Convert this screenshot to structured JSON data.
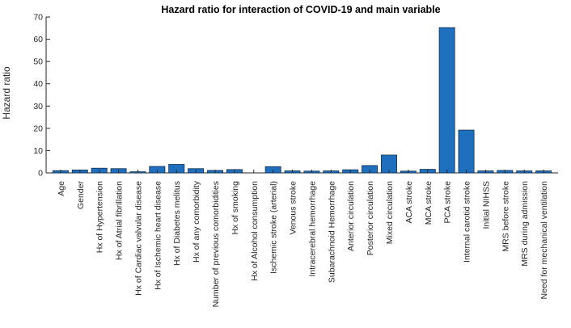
{
  "chart_data": {
    "type": "bar",
    "title": "Hazard ratio for interaction of COVID-19 and main variable",
    "xlabel": "",
    "ylabel": "Hazard ratio",
    "ylim": [
      0,
      70
    ],
    "yticks": [
      0,
      10,
      20,
      30,
      40,
      50,
      60,
      70
    ],
    "grid": false,
    "legend": "none",
    "bar_color": "#1f6fbf",
    "bar_edge_color": "#0d2c4d",
    "categories": [
      "Age",
      "Gender",
      "Hx of Hypertension",
      "Hx of Atrial fibrillation",
      "Hx of Cardiac valvular disease",
      "Hx of Ischemic heart disease",
      "Hx of Diabetes melitus",
      "Hx of any comorbidity",
      "Number of previous comorbidities",
      "Hx of smoking",
      "Hx of Alcohol consumption",
      "Ischemic stroke (arterial)",
      "Venous stroke",
      "Intracerebral hemorrhage",
      "Subarachnoid Hemorrhage",
      "Anterior circulation",
      "Posterior circulation",
      "Mixed circulation",
      "ACA stroke",
      "MCA stroke",
      "PCA stroke",
      "Internal carotid stroke",
      "Initial NIHSS",
      "MRS before stroke",
      "MRS during admission",
      "Need for mechanical ventilation"
    ],
    "values": [
      1.0,
      1.3,
      2.1,
      1.9,
      0.5,
      2.9,
      3.8,
      1.9,
      1.1,
      1.5,
      0.0,
      2.8,
      0.9,
      0.8,
      0.9,
      1.4,
      3.3,
      8.0,
      0.8,
      1.6,
      65.2,
      19.2,
      0.9,
      1.1,
      0.9,
      0.9
    ]
  }
}
